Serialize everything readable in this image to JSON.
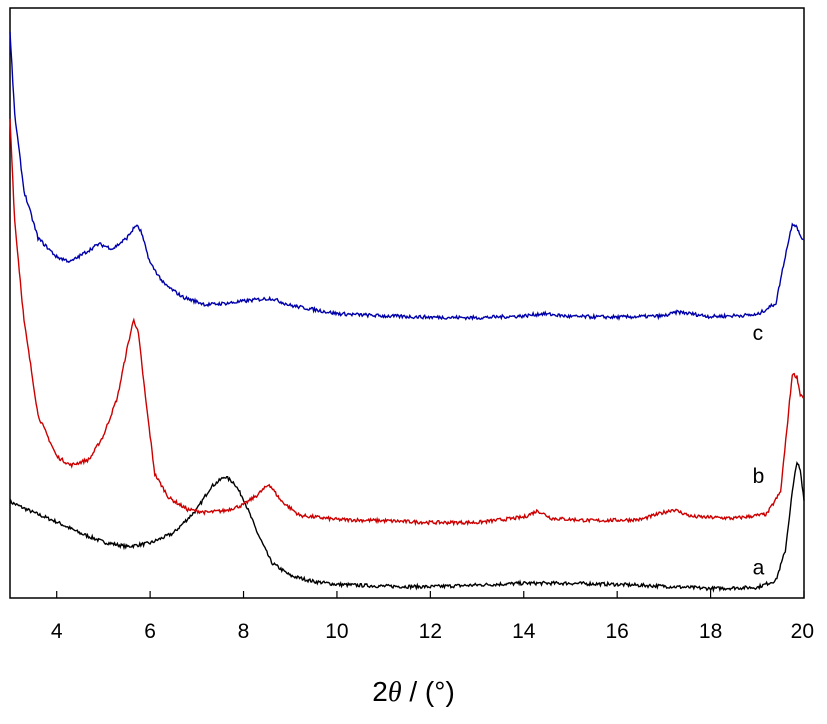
{
  "chart_data": {
    "type": "line",
    "xlabel": {
      "prefix": "2",
      "symbol": "θ",
      "suffix": " / (°)"
    },
    "ylabel": "",
    "xlim": [
      3,
      20
    ],
    "xticks": [
      4,
      6,
      8,
      10,
      12,
      14,
      16,
      18,
      20
    ],
    "y_axis_ticks": false,
    "ylim": [
      0,
      1
    ],
    "series": [
      {
        "name": "a",
        "color": "#000000",
        "points": [
          [
            3.0,
            0.163
          ],
          [
            3.5,
            0.145
          ],
          [
            4.0,
            0.129
          ],
          [
            4.5,
            0.11
          ],
          [
            5.0,
            0.095
          ],
          [
            5.5,
            0.087
          ],
          [
            6.0,
            0.093
          ],
          [
            6.5,
            0.11
          ],
          [
            7.0,
            0.15
          ],
          [
            7.3,
            0.188
          ],
          [
            7.6,
            0.206
          ],
          [
            7.8,
            0.195
          ],
          [
            8.0,
            0.168
          ],
          [
            8.3,
            0.11
          ],
          [
            8.6,
            0.06
          ],
          [
            9.0,
            0.038
          ],
          [
            9.5,
            0.028
          ],
          [
            10.0,
            0.023
          ],
          [
            11.0,
            0.02
          ],
          [
            12.0,
            0.019
          ],
          [
            13.0,
            0.022
          ],
          [
            14.0,
            0.025
          ],
          [
            15.0,
            0.025
          ],
          [
            16.0,
            0.023
          ],
          [
            17.0,
            0.02
          ],
          [
            18.0,
            0.016
          ],
          [
            19.0,
            0.018
          ],
          [
            19.4,
            0.03
          ],
          [
            19.6,
            0.08
          ],
          [
            19.75,
            0.18
          ],
          [
            19.85,
            0.232
          ],
          [
            19.92,
            0.215
          ],
          [
            20.0,
            0.165
          ]
        ],
        "label_x": 18.9,
        "label_y": 0.04
      },
      {
        "name": "b",
        "color": "#cc0000",
        "points": [
          [
            3.0,
            0.813
          ],
          [
            3.1,
            0.64
          ],
          [
            3.3,
            0.47
          ],
          [
            3.6,
            0.31
          ],
          [
            4.0,
            0.24
          ],
          [
            4.3,
            0.225
          ],
          [
            4.7,
            0.235
          ],
          [
            5.0,
            0.275
          ],
          [
            5.3,
            0.34
          ],
          [
            5.5,
            0.42
          ],
          [
            5.65,
            0.473
          ],
          [
            5.75,
            0.448
          ],
          [
            5.9,
            0.34
          ],
          [
            6.1,
            0.21
          ],
          [
            6.4,
            0.17
          ],
          [
            6.8,
            0.15
          ],
          [
            7.2,
            0.145
          ],
          [
            7.6,
            0.148
          ],
          [
            8.0,
            0.158
          ],
          [
            8.3,
            0.175
          ],
          [
            8.55,
            0.193
          ],
          [
            8.8,
            0.165
          ],
          [
            9.2,
            0.14
          ],
          [
            10.0,
            0.133
          ],
          [
            11.0,
            0.131
          ],
          [
            12.0,
            0.128
          ],
          [
            13.0,
            0.128
          ],
          [
            14.0,
            0.137
          ],
          [
            14.3,
            0.148
          ],
          [
            14.6,
            0.135
          ],
          [
            15.5,
            0.131
          ],
          [
            16.5,
            0.133
          ],
          [
            17.2,
            0.15
          ],
          [
            17.6,
            0.138
          ],
          [
            18.5,
            0.135
          ],
          [
            19.2,
            0.142
          ],
          [
            19.5,
            0.18
          ],
          [
            19.65,
            0.3
          ],
          [
            19.75,
            0.38
          ],
          [
            19.85,
            0.375
          ],
          [
            19.92,
            0.345
          ],
          [
            20.0,
            0.34
          ]
        ],
        "label_x": 18.9,
        "label_y": 0.195
      },
      {
        "name": "c",
        "color": "#0000aa",
        "points": [
          [
            3.0,
            0.958
          ],
          [
            3.1,
            0.82
          ],
          [
            3.3,
            0.69
          ],
          [
            3.6,
            0.61
          ],
          [
            4.0,
            0.578
          ],
          [
            4.3,
            0.57
          ],
          [
            4.6,
            0.585
          ],
          [
            4.9,
            0.6
          ],
          [
            5.2,
            0.592
          ],
          [
            5.5,
            0.61
          ],
          [
            5.7,
            0.632
          ],
          [
            5.8,
            0.622
          ],
          [
            6.0,
            0.568
          ],
          [
            6.3,
            0.532
          ],
          [
            6.7,
            0.51
          ],
          [
            7.2,
            0.497
          ],
          [
            7.7,
            0.5
          ],
          [
            8.2,
            0.505
          ],
          [
            8.6,
            0.508
          ],
          [
            9.0,
            0.496
          ],
          [
            10.0,
            0.482
          ],
          [
            11.0,
            0.478
          ],
          [
            12.0,
            0.476
          ],
          [
            13.0,
            0.475
          ],
          [
            14.0,
            0.478
          ],
          [
            14.4,
            0.482
          ],
          [
            15.0,
            0.477
          ],
          [
            16.0,
            0.476
          ],
          [
            17.0,
            0.478
          ],
          [
            17.3,
            0.485
          ],
          [
            18.0,
            0.477
          ],
          [
            19.0,
            0.48
          ],
          [
            19.4,
            0.5
          ],
          [
            19.6,
            0.58
          ],
          [
            19.75,
            0.635
          ],
          [
            19.85,
            0.63
          ],
          [
            19.92,
            0.612
          ],
          [
            20.0,
            0.607
          ]
        ],
        "label_x": 18.9,
        "label_y": 0.437
      }
    ]
  }
}
